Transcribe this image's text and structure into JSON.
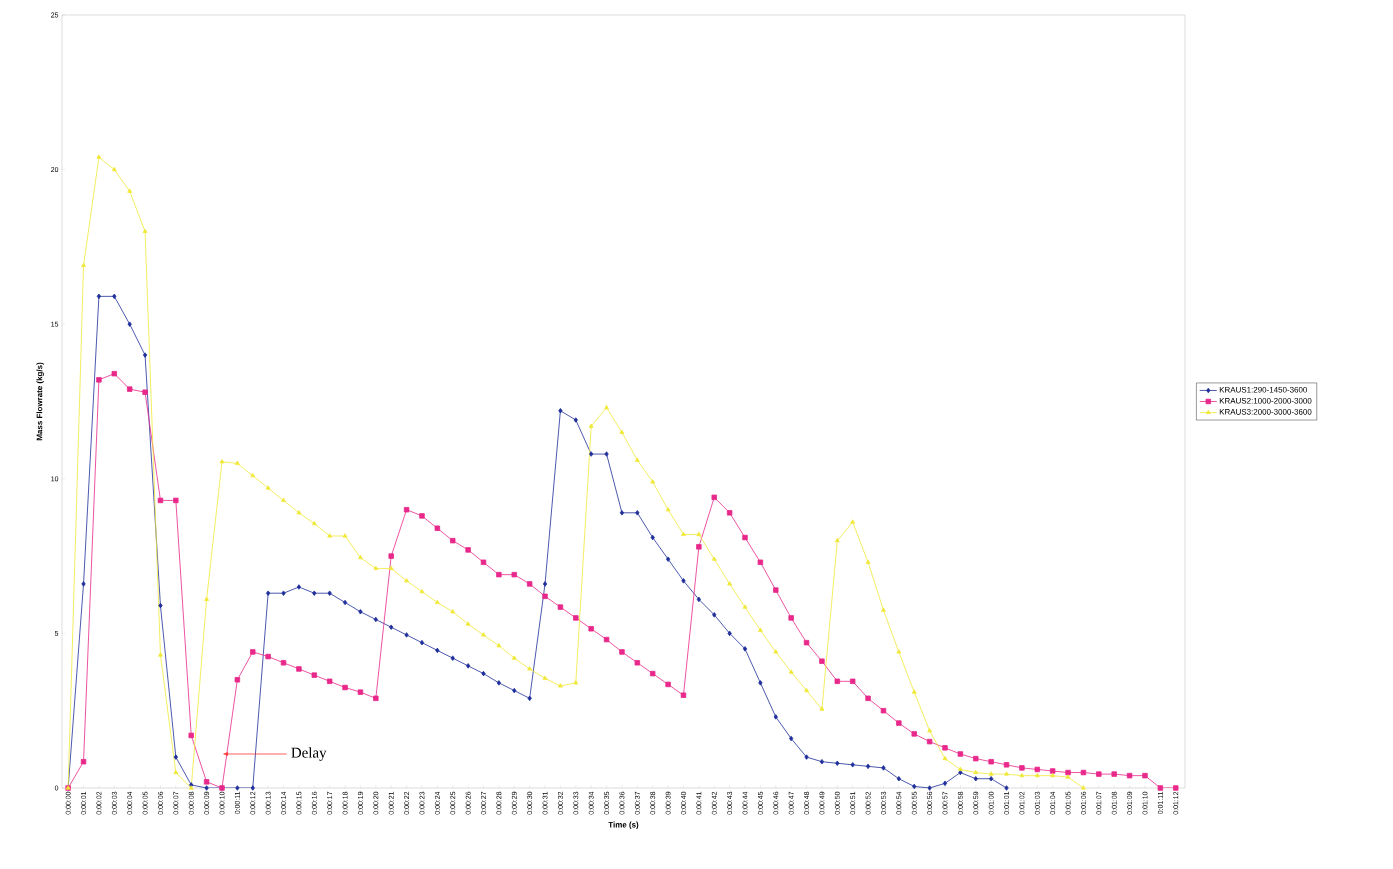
{
  "chart_data": {
    "type": "line",
    "xlabel": "Time (s)",
    "ylabel": "Mass Flowrate (kg/s)",
    "categories": [
      "0:00:00",
      "0:00:01",
      "0:00:02",
      "0:00:03",
      "0:00:04",
      "0:00:05",
      "0:00:06",
      "0:00:07",
      "0:00:08",
      "0:00:09",
      "0:00:10",
      "0:00:11",
      "0:00:12",
      "0:00:13",
      "0:00:14",
      "0:00:15",
      "0:00:16",
      "0:00:17",
      "0:00:18",
      "0:00:19",
      "0:00:20",
      "0:00:21",
      "0:00:22",
      "0:00:23",
      "0:00:24",
      "0:00:25",
      "0:00:26",
      "0:00:27",
      "0:00:28",
      "0:00:29",
      "0:00:30",
      "0:00:31",
      "0:00:32",
      "0:00:33",
      "0:00:34",
      "0:00:35",
      "0:00:36",
      "0:00:37",
      "0:00:38",
      "0:00:39",
      "0:00:40",
      "0:00:41",
      "0:00:42",
      "0:00:43",
      "0:00:44",
      "0:00:45",
      "0:00:46",
      "0:00:47",
      "0:00:48",
      "0:00:49",
      "0:00:50",
      "0:00:51",
      "0:00:52",
      "0:00:53",
      "0:00:54",
      "0:00:55",
      "0:00:56",
      "0:00:57",
      "0:00:58",
      "0:00:59",
      "0:01:00",
      "0:01:01",
      "0:01:02",
      "0:01:03",
      "0:01:04",
      "0:01:05",
      "0:01:06",
      "0:01:07",
      "0:01:08",
      "0:01:09",
      "0:01:10",
      "0:01:11",
      "0:01:12"
    ],
    "series": [
      {
        "name": "KRAUS1:290-1450-3600",
        "color": "#1f2f9a",
        "marker": "diamond",
        "values": [
          0,
          6.6,
          15.9,
          15.9,
          15.0,
          14.0,
          5.9,
          1.0,
          0.1,
          0,
          0,
          0,
          0,
          6.3,
          6.3,
          6.5,
          6.3,
          6.3,
          6.0,
          5.7,
          5.45,
          5.2,
          4.95,
          4.7,
          4.45,
          4.2,
          3.95,
          3.7,
          3.4,
          3.15,
          2.9,
          6.6,
          12.2,
          11.9,
          10.8,
          10.8,
          8.9,
          8.9,
          8.1,
          7.4,
          6.7,
          6.1,
          5.6,
          5.0,
          4.5,
          3.4,
          2.3,
          1.6,
          1.0,
          0.85,
          0.8,
          0.75,
          0.7,
          0.65,
          0.3,
          0.05,
          0,
          0.15,
          0.5,
          0.3,
          0.3,
          0,
          null,
          null,
          null,
          null,
          null,
          null,
          null,
          null,
          null,
          null,
          null
        ]
      },
      {
        "name": "KRAUS2:1000-2000-3000",
        "color": "#e8288a",
        "marker": "square",
        "values": [
          0,
          0.85,
          13.2,
          13.4,
          12.9,
          12.8,
          9.3,
          9.3,
          1.7,
          0.2,
          0,
          3.5,
          4.4,
          4.25,
          4.05,
          3.85,
          3.65,
          3.45,
          3.25,
          3.1,
          2.9,
          7.5,
          9.0,
          8.8,
          8.4,
          8.0,
          7.7,
          7.3,
          6.9,
          6.9,
          6.6,
          6.2,
          5.85,
          5.5,
          5.15,
          4.8,
          4.4,
          4.05,
          3.7,
          3.35,
          3.0,
          7.8,
          9.4,
          8.9,
          8.1,
          7.3,
          6.4,
          5.5,
          4.7,
          4.1,
          3.45,
          3.45,
          2.9,
          2.5,
          2.1,
          1.75,
          1.5,
          1.3,
          1.1,
          0.95,
          0.85,
          0.75,
          0.65,
          0.6,
          0.55,
          0.5,
          0.5,
          0.45,
          0.45,
          0.4,
          0.4,
          0,
          0
        ]
      },
      {
        "name": "KRAUS3:2000-3000-3600",
        "color": "#f0e838",
        "marker": "triangle",
        "values": [
          0,
          16.9,
          20.4,
          20.0,
          19.3,
          18.0,
          4.3,
          0.5,
          0,
          6.1,
          10.55,
          10.5,
          10.1,
          9.7,
          9.3,
          8.9,
          8.55,
          8.15,
          8.15,
          7.45,
          7.1,
          7.1,
          6.7,
          6.35,
          6.0,
          5.7,
          5.3,
          4.95,
          4.6,
          4.2,
          3.85,
          3.55,
          3.3,
          3.4,
          11.7,
          12.3,
          11.5,
          10.6,
          9.9,
          9.0,
          8.2,
          8.2,
          7.4,
          6.6,
          5.85,
          5.1,
          4.4,
          3.75,
          3.15,
          2.55,
          8.0,
          8.6,
          7.3,
          5.75,
          4.4,
          3.1,
          1.85,
          0.95,
          0.6,
          0.5,
          0.45,
          0.45,
          0.4,
          0.4,
          0.4,
          0.35,
          0,
          null,
          null,
          null,
          null,
          null,
          null
        ]
      }
    ],
    "ylim": [
      0,
      25
    ],
    "yticks": [
      0,
      5,
      10,
      15,
      20,
      25
    ],
    "legend": "right",
    "grid": false,
    "annotations": [
      {
        "text": "Delay",
        "x": "0:00:10",
        "y": 1.1
      }
    ]
  }
}
